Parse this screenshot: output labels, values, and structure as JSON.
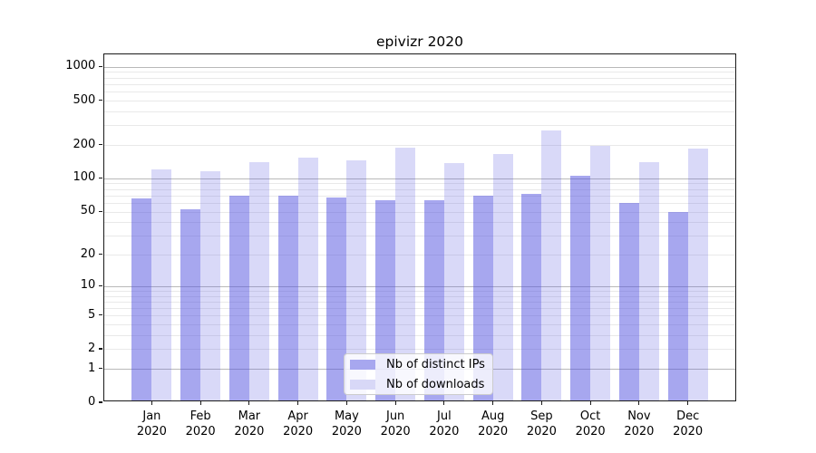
{
  "chart_data": {
    "type": "bar",
    "title": "epivizr 2020",
    "categories": [
      "Jan",
      "Feb",
      "Mar",
      "Apr",
      "May",
      "Jun",
      "Jul",
      "Aug",
      "Sep",
      "Oct",
      "Nov",
      "Dec"
    ],
    "x_sublabel": "2020",
    "series": [
      {
        "name": "Nb of distinct IPs",
        "color": "rgba(80,80,224,0.5)",
        "legend_color": "#a7a7ef",
        "values": [
          64,
          51,
          68,
          68,
          65,
          61,
          62,
          68,
          70,
          103,
          58,
          48
        ]
      },
      {
        "name": "Nb of downloads",
        "color": "rgba(80,80,224,0.22)",
        "legend_color": "#d8d8f7",
        "values": [
          116,
          113,
          137,
          150,
          140,
          182,
          134,
          161,
          260,
          191,
          136,
          181
        ]
      }
    ],
    "y_ticks": [
      0,
      1,
      2,
      5,
      10,
      20,
      50,
      100,
      200,
      500,
      1000
    ],
    "scale": "log1p",
    "ylim": [
      0,
      1300
    ],
    "grid": "major+minor horizontal",
    "legend_position": "lower center"
  }
}
